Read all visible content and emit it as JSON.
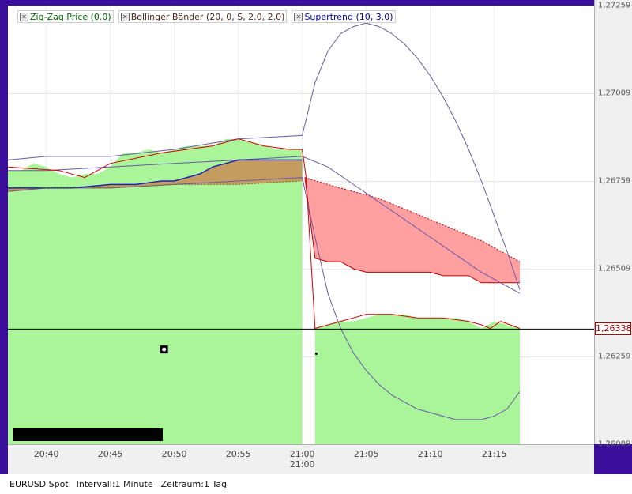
{
  "legend": [
    {
      "label": "Zig-Zag Price (0.0)",
      "color": "#006600"
    },
    {
      "label": "Bollinger Bänder (20, 0, S, 2.0, 2.0)",
      "color": "#4a2a1a"
    },
    {
      "label": "Supertrend (10, 3.0)",
      "color": "#0000aa"
    }
  ],
  "status": {
    "symbol": "EURUSD Spot",
    "interval": "Intervall:1 Minute",
    "range": "Zeitraum:1 Tag"
  },
  "price_tag": "1,26338",
  "colors": {
    "bull_fill": "#aaf59a",
    "bear_fill": "#ff9f9f",
    "bull_overlap": "#c8925a",
    "band_line": "#6a5aa6",
    "supertrend": "#1e22b0",
    "zigzag": "#d40000",
    "current_line": "#000000"
  },
  "chart_data": {
    "type": "line",
    "title": "",
    "xlabel": "",
    "ylabel": "",
    "ylim": [
      1.2601,
      1.2726
    ],
    "xlim": [
      37.0,
      82.8
    ],
    "x_tick_labels": [
      "20:40",
      "20:45",
      "20:50",
      "20:55",
      "21:00",
      "21:05",
      "21:10",
      "21:15"
    ],
    "x_tick_values": [
      40,
      45,
      50,
      55,
      60,
      65,
      70,
      75
    ],
    "x_date_label": "21:00",
    "y_tick_labels": [
      "1,27259",
      "1,27009",
      "1,26759",
      "1,26509",
      "1,26259",
      "1,26009"
    ],
    "y_tick_values": [
      1.27259,
      1.27009,
      1.26759,
      1.26509,
      1.26259,
      1.26009
    ],
    "current_price": 1.26338,
    "series": [
      {
        "kind": "bull_area_top",
        "x": [
          37,
          38,
          39,
          40,
          41,
          42,
          43,
          44,
          45,
          46,
          47,
          48,
          49,
          50,
          51,
          52,
          53,
          54,
          55,
          56,
          57,
          58,
          59,
          60
        ],
        "values": [
          1.2679,
          1.2679,
          1.2681,
          1.268,
          1.2678,
          1.2677,
          1.2678,
          1.2678,
          1.268,
          1.2684,
          1.2684,
          1.2685,
          1.2684,
          1.2685,
          1.2686,
          1.2686,
          1.2686,
          1.2688,
          1.2688,
          1.2687,
          1.2686,
          1.2685,
          1.2685,
          1.2685
        ]
      },
      {
        "kind": "bull_area_bottom",
        "x": [
          37,
          40,
          45,
          50,
          55,
          60
        ],
        "values": [
          1.2673,
          1.2674,
          1.2674,
          1.2675,
          1.2675,
          1.2676
        ]
      },
      {
        "kind": "bull_after_area_top",
        "x": [
          61,
          62,
          63,
          64,
          65,
          66,
          67,
          68,
          69,
          70,
          71,
          72,
          73,
          74,
          75,
          76,
          77
        ],
        "values": [
          1.2634,
          1.2635,
          1.2636,
          1.2636,
          1.2637,
          1.2638,
          1.2638,
          1.2638,
          1.2637,
          1.2637,
          1.2637,
          1.2637,
          1.2636,
          1.2634,
          1.2636,
          1.2635,
          1.2634
        ]
      },
      {
        "kind": "bear_area_top",
        "x": [
          60.2,
          62,
          64,
          66,
          68,
          70,
          72,
          74,
          76,
          77
        ],
        "values": [
          1.2677,
          1.2675,
          1.2673,
          1.2671,
          1.2668,
          1.2665,
          1.2662,
          1.2659,
          1.2655,
          1.2653
        ]
      },
      {
        "kind": "bear_area_bottom",
        "x": [
          60.2,
          61,
          62,
          63,
          64,
          65,
          66,
          67,
          68,
          69,
          70,
          71,
          72,
          73,
          74,
          75,
          76,
          77
        ],
        "values": [
          1.2677,
          1.2654,
          1.2653,
          1.2653,
          1.2651,
          1.265,
          1.265,
          1.265,
          1.265,
          1.265,
          1.265,
          1.2649,
          1.2649,
          1.2649,
          1.2647,
          1.2647,
          1.2647,
          1.2647
        ]
      },
      {
        "kind": "bollinger_upper",
        "x": [
          37,
          40,
          45,
          50,
          55,
          60,
          61,
          62,
          63,
          64,
          65,
          66,
          67,
          68,
          69,
          70,
          71,
          72,
          73,
          74,
          75,
          76,
          77
        ],
        "values": [
          1.2682,
          1.2683,
          1.2683,
          1.2685,
          1.2688,
          1.2689,
          1.2704,
          1.2713,
          1.2718,
          1.272,
          1.2721,
          1.272,
          1.2718,
          1.2715,
          1.2711,
          1.2706,
          1.27,
          1.2693,
          1.2685,
          1.2676,
          1.2666,
          1.2656,
          1.2645
        ]
      },
      {
        "kind": "bollinger_middle",
        "x": [
          37,
          40,
          45,
          50,
          55,
          60,
          62,
          64,
          66,
          68,
          70,
          72,
          74,
          76,
          77
        ],
        "values": [
          1.2679,
          1.2679,
          1.268,
          1.2681,
          1.2682,
          1.2683,
          1.268,
          1.2675,
          1.267,
          1.2665,
          1.266,
          1.2655,
          1.265,
          1.2646,
          1.2644
        ]
      },
      {
        "kind": "bollinger_lower",
        "x": [
          37,
          40,
          45,
          50,
          55,
          60,
          61,
          62,
          63,
          64,
          65,
          66,
          67,
          68,
          69,
          70,
          71,
          72,
          73,
          74,
          75,
          76,
          77
        ],
        "values": [
          1.2673,
          1.2674,
          1.2674,
          1.2675,
          1.2676,
          1.2677,
          1.266,
          1.2644,
          1.2634,
          1.2627,
          1.2622,
          1.2618,
          1.2615,
          1.2613,
          1.2611,
          1.261,
          1.2609,
          1.2608,
          1.2608,
          1.2608,
          1.2609,
          1.2611,
          1.2616
        ]
      },
      {
        "kind": "supertrend",
        "x": [
          37,
          42,
          45,
          47,
          49,
          50,
          51,
          52,
          53,
          54,
          55,
          56,
          57,
          58,
          59,
          60
        ],
        "values": [
          1.2674,
          1.2674,
          1.2675,
          1.2675,
          1.2676,
          1.2676,
          1.2677,
          1.2678,
          1.268,
          1.2681,
          1.2682,
          1.2682,
          1.2682,
          1.2682,
          1.2682,
          1.2682
        ]
      },
      {
        "kind": "zigzag",
        "x": [
          37,
          41,
          43,
          45,
          49,
          53,
          55,
          57,
          59,
          60,
          60.3,
          61,
          63,
          65,
          67,
          69,
          71,
          73,
          74,
          74.7,
          75.5,
          77
        ],
        "values": [
          1.268,
          1.2679,
          1.2677,
          1.2681,
          1.2684,
          1.2686,
          1.2688,
          1.2686,
          1.2685,
          1.2685,
          1.2677,
          1.2634,
          1.2636,
          1.2638,
          1.2638,
          1.2637,
          1.2637,
          1.2636,
          1.2635,
          1.2634,
          1.2636,
          1.2634
        ]
      }
    ],
    "markers": [
      {
        "kind": "box-marker",
        "x": 49.2,
        "y": 1.2628
      },
      {
        "kind": "dot-marker",
        "x": 61.1,
        "y": 1.26268
      }
    ],
    "grid": true
  }
}
